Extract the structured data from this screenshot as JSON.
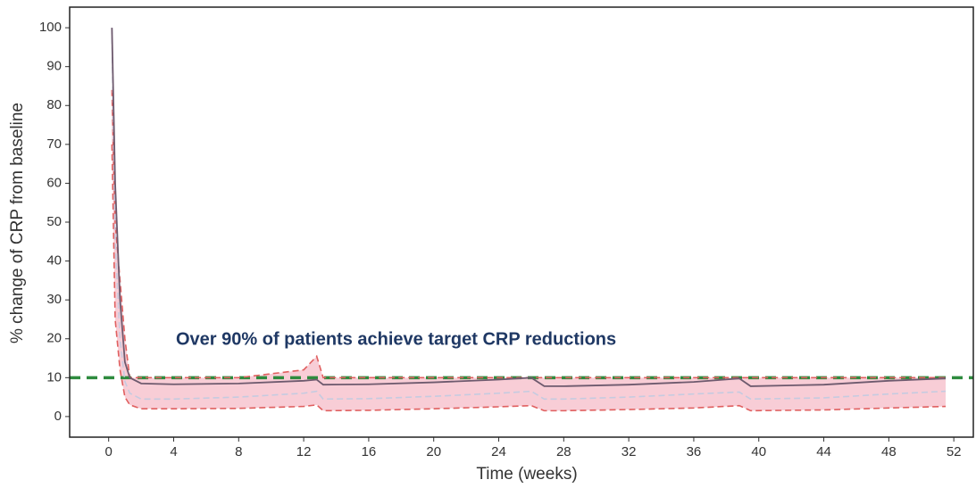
{
  "chart_data": {
    "type": "line",
    "y_label": "% change of CRP from baseline",
    "x_label": "Time (weeks)",
    "annotation": "Over 90% of patients achieve target CRP reductions",
    "x": [
      0.2,
      0.4,
      0.7,
      1,
      1.3,
      2,
      4,
      8,
      12,
      12.8,
      13.2,
      16,
      20,
      24,
      26,
      26.8,
      28,
      32,
      36,
      38.8,
      39.5,
      44,
      48,
      51.5
    ],
    "series": [
      {
        "color": "#e06060",
        "dash": true,
        "band": "upper",
        "values": [
          84,
          50,
          35,
          20,
          10,
          10,
          10,
          10,
          12,
          15.5,
          10,
          10,
          10,
          10,
          10,
          10,
          10,
          10,
          10,
          10,
          10,
          10,
          10,
          10
        ]
      },
      {
        "color": "#e06060",
        "dash": true,
        "band": "lower",
        "values": [
          70,
          25,
          12,
          5,
          3,
          2,
          2,
          2.1,
          2.6,
          3,
          1.5,
          1.6,
          2,
          2.5,
          2.8,
          1.5,
          1.5,
          1.8,
          2.2,
          2.8,
          1.5,
          1.7,
          2.2,
          2.6
        ]
      },
      {
        "color": "#c5cbe0",
        "dash": true,
        "values": [
          100,
          45,
          20,
          9,
          6,
          4.5,
          4.5,
          5,
          6,
          6.5,
          4.5,
          4.6,
          5.2,
          6,
          6.5,
          4.5,
          4.5,
          5,
          5.8,
          6.3,
          4.5,
          4.8,
          5.8,
          6.5
        ]
      },
      {
        "color": "#6e5a6e",
        "dash": false,
        "values": [
          100,
          60,
          30,
          14,
          10,
          8.5,
          8.3,
          8.5,
          9.2,
          9.5,
          8.2,
          8.3,
          8.8,
          9.5,
          10,
          7.8,
          7.8,
          8.2,
          8.9,
          9.8,
          7.8,
          8.2,
          9.2,
          9.8
        ]
      }
    ],
    "band_color": "#f8cdd6",
    "target": 10,
    "target_color": "#2e8b3e",
    "xlim": [
      -2.4,
      53.2
    ],
    "xticks": [
      0,
      4,
      8,
      12,
      16,
      20,
      24,
      28,
      32,
      36,
      40,
      44,
      48,
      52
    ],
    "ylim": [
      -5.3,
      105.3
    ],
    "yticks": [
      0,
      10,
      20,
      30,
      40,
      50,
      60,
      70,
      80,
      90,
      100
    ]
  }
}
